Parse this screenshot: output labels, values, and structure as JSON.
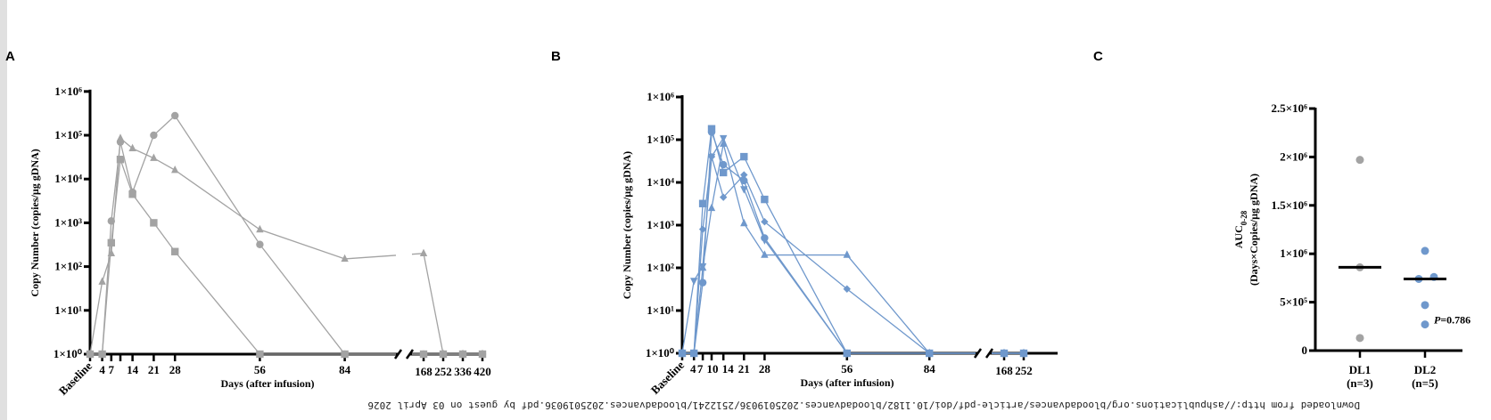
{
  "panel_labels": [
    "A",
    "B",
    "C"
  ],
  "watermark": "Downloaded from http://ashpublications.org/bloodadvances/article-pdf/doi/10.1182/bloodadvances.2025019036/2512241/bloodadvances.2025019036.pdf by guest on 03 April 2026",
  "colors": {
    "dl1": "#a3a3a3",
    "dl2": "#6f98cc",
    "axis": "#000000"
  },
  "chart_data": [
    {
      "panel": "A",
      "type": "line",
      "ylabel": "Copy Number (copies/µg gDNA)",
      "xlabel": "Days (after infusion)",
      "yscale": "log",
      "ylim": [
        1,
        1000000
      ],
      "ytick_labels": [
        "1×10⁰",
        "1×10¹",
        "1×10²",
        "1×10³",
        "1×10⁴",
        "1×10⁵",
        "1×10⁶"
      ],
      "xticks": [
        0,
        4,
        7,
        10,
        14,
        21,
        28,
        56,
        84,
        168,
        252,
        336,
        420
      ],
      "xtick_labels": [
        "Baseline",
        "4",
        "7",
        "",
        "14",
        "21",
        "28",
        "56",
        "84",
        "168",
        "252",
        "336",
        "420"
      ],
      "axis_break": "between 84 and 168",
      "series": [
        {
          "marker": "circle",
          "x": [
            0,
            4,
            7,
            10,
            14,
            21,
            28,
            56,
            84,
            168,
            252,
            336,
            420
          ],
          "y": [
            1,
            1,
            1100,
            70000,
            5000,
            100000,
            280000,
            320,
            1,
            1,
            1,
            1,
            1
          ]
        },
        {
          "marker": "triangle",
          "x": [
            0,
            4,
            7,
            10,
            14,
            21,
            28,
            56,
            84,
            168,
            252,
            336,
            420
          ],
          "y": [
            1,
            45,
            200,
            85000,
            50000,
            30000,
            16000,
            700,
            150,
            200,
            1,
            1,
            1
          ]
        },
        {
          "marker": "square",
          "x": [
            0,
            4,
            7,
            10,
            14,
            21,
            28,
            56,
            84,
            168,
            252,
            336,
            420
          ],
          "y": [
            1,
            1,
            350,
            28000,
            4500,
            1000,
            220,
            1,
            1,
            1,
            1,
            1,
            1
          ]
        }
      ]
    },
    {
      "panel": "B",
      "type": "line",
      "ylabel": "Copy Number (copies/µg gDNA)",
      "xlabel": "Days (after infusion)",
      "yscale": "log",
      "ylim": [
        1,
        1000000
      ],
      "ytick_labels": [
        "1×10⁰",
        "1×10¹",
        "1×10²",
        "1×10³",
        "1×10⁴",
        "1×10⁵",
        "1×10⁶"
      ],
      "xticks": [
        0,
        4,
        7,
        10,
        14,
        21,
        28,
        56,
        84,
        168,
        252
      ],
      "xtick_labels": [
        "Baseline",
        "4",
        "7",
        "10",
        "14",
        "21",
        "28",
        "56",
        "84",
        "168",
        "252"
      ],
      "axis_break": "between 84 and 168",
      "series": [
        {
          "marker": "square",
          "x": [
            0,
            4,
            7,
            10,
            14,
            21,
            28,
            56,
            84,
            168,
            252
          ],
          "y": [
            1,
            1,
            3200,
            180000,
            17000,
            40000,
            4000,
            1,
            1,
            1,
            1
          ]
        },
        {
          "marker": "circle",
          "x": [
            0,
            4,
            7,
            10,
            14,
            21,
            28,
            56,
            84,
            168,
            252
          ],
          "y": [
            1,
            1,
            45,
            150000,
            26000,
            11000,
            500,
            1,
            1,
            1,
            1
          ]
        },
        {
          "marker": "triangle",
          "x": [
            0,
            4,
            7,
            10,
            14,
            21,
            28,
            56,
            84,
            168,
            252
          ],
          "y": [
            1,
            1,
            100,
            2500,
            80000,
            1100,
            200,
            200,
            1,
            1,
            1
          ]
        },
        {
          "marker": "triangle-down",
          "x": [
            0,
            4,
            7,
            10,
            14,
            21,
            28,
            56,
            84,
            168,
            252
          ],
          "y": [
            1,
            50,
            110,
            40000,
            110000,
            7000,
            450,
            1,
            1,
            1,
            1
          ]
        },
        {
          "marker": "diamond",
          "x": [
            0,
            4,
            7,
            10,
            14,
            21,
            28,
            56,
            84,
            168,
            252
          ],
          "y": [
            1,
            1,
            800,
            40000,
            4500,
            15000,
            1200,
            32,
            1,
            1,
            1
          ]
        }
      ]
    },
    {
      "panel": "C",
      "type": "scatter",
      "ylabel_main": "AUC",
      "ylabel_sub": "0-28",
      "ylabel_units": "(Days×Copies/µg gDNA)",
      "ylim": [
        0,
        2500000
      ],
      "yticks": [
        0,
        500000,
        1000000,
        1500000,
        2000000,
        2500000
      ],
      "ytick_labels": [
        "0",
        "5×10⁵",
        "1×10⁶",
        "1.5×10⁶",
        "2×10⁶",
        "2.5×10⁶"
      ],
      "categories": [
        {
          "label": "DL1",
          "n": "(n=3)",
          "values": [
            1970000,
            860000,
            130000
          ],
          "median": 860000
        },
        {
          "label": "DL2",
          "n": "(n=5)",
          "values": [
            1030000,
            760000,
            740000,
            470000,
            270000
          ],
          "median": 740000
        }
      ],
      "annotation": {
        "italic": "P",
        "text": "=0.786"
      }
    }
  ]
}
